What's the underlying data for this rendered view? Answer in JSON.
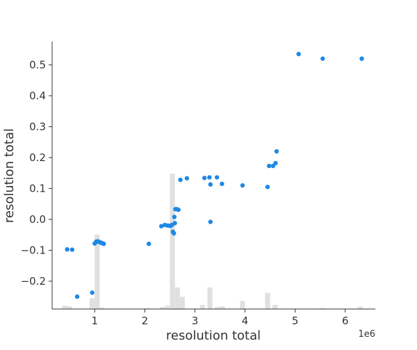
{
  "chart_data": {
    "type": "scatter",
    "xlabel": "resolution total",
    "ylabel": "resolution total",
    "x_offset_label": "1e6",
    "x_unit_scale": 1000000,
    "xlim": [
      150000,
      6600000
    ],
    "ylim": [
      -0.29,
      0.575
    ],
    "x_ticks": [
      1000000,
      2000000,
      3000000,
      4000000,
      5000000,
      6000000
    ],
    "x_tick_labels": [
      "1",
      "2",
      "3",
      "4",
      "5",
      "6"
    ],
    "y_ticks": [
      -0.2,
      -0.1,
      0.0,
      0.1,
      0.2,
      0.3,
      0.4,
      0.5
    ],
    "y_tick_labels": [
      "−0.2",
      "−0.1",
      "0.0",
      "0.1",
      "0.2",
      "0.3",
      "0.4",
      "0.5"
    ],
    "grid": false,
    "point_color": "#1E88E5",
    "histogram_color": "#E0E0E0",
    "points": [
      {
        "x": 450000,
        "y": -0.097
      },
      {
        "x": 550000,
        "y": -0.098
      },
      {
        "x": 650000,
        "y": -0.25
      },
      {
        "x": 950000,
        "y": -0.237
      },
      {
        "x": 1000000,
        "y": -0.078
      },
      {
        "x": 1030000,
        "y": -0.072
      },
      {
        "x": 1060000,
        "y": -0.071
      },
      {
        "x": 1090000,
        "y": -0.073
      },
      {
        "x": 1120000,
        "y": -0.075
      },
      {
        "x": 1150000,
        "y": -0.077
      },
      {
        "x": 1180000,
        "y": -0.079
      },
      {
        "x": 2080000,
        "y": -0.079
      },
      {
        "x": 2330000,
        "y": -0.022
      },
      {
        "x": 2400000,
        "y": -0.018
      },
      {
        "x": 2460000,
        "y": -0.02
      },
      {
        "x": 2510000,
        "y": -0.021
      },
      {
        "x": 2540000,
        "y": -0.018
      },
      {
        "x": 2560000,
        "y": -0.04
      },
      {
        "x": 2580000,
        "y": -0.045
      },
      {
        "x": 2590000,
        "y": 0.008
      },
      {
        "x": 2600000,
        "y": -0.012
      },
      {
        "x": 2610000,
        "y": 0.033
      },
      {
        "x": 2640000,
        "y": 0.033
      },
      {
        "x": 2670000,
        "y": 0.031
      },
      {
        "x": 2710000,
        "y": 0.128
      },
      {
        "x": 2840000,
        "y": 0.133
      },
      {
        "x": 3190000,
        "y": 0.134
      },
      {
        "x": 3290000,
        "y": 0.136
      },
      {
        "x": 3310000,
        "y": 0.113
      },
      {
        "x": 3310000,
        "y": -0.008
      },
      {
        "x": 3440000,
        "y": 0.136
      },
      {
        "x": 3540000,
        "y": 0.115
      },
      {
        "x": 3950000,
        "y": 0.11
      },
      {
        "x": 4450000,
        "y": 0.105
      },
      {
        "x": 4480000,
        "y": 0.173
      },
      {
        "x": 4560000,
        "y": 0.173
      },
      {
        "x": 4610000,
        "y": 0.182
      },
      {
        "x": 4630000,
        "y": 0.22
      },
      {
        "x": 5070000,
        "y": 0.535
      },
      {
        "x": 5550000,
        "y": 0.52
      },
      {
        "x": 6330000,
        "y": 0.52
      }
    ],
    "histogram": {
      "bin_width": 100000,
      "bins": [
        {
          "x": 400000,
          "frac": 0.025
        },
        {
          "x": 500000,
          "frac": 0.02
        },
        {
          "x": 950000,
          "frac": 0.08
        },
        {
          "x": 1050000,
          "frac": 0.55
        },
        {
          "x": 1150000,
          "frac": 0.01
        },
        {
          "x": 2050000,
          "frac": 0.008
        },
        {
          "x": 2350000,
          "frac": 0.015
        },
        {
          "x": 2450000,
          "frac": 0.025
        },
        {
          "x": 2550000,
          "frac": 1.0
        },
        {
          "x": 2650000,
          "frac": 0.16
        },
        {
          "x": 2750000,
          "frac": 0.09
        },
        {
          "x": 3150000,
          "frac": 0.03
        },
        {
          "x": 3300000,
          "frac": 0.16
        },
        {
          "x": 3450000,
          "frac": 0.015
        },
        {
          "x": 3550000,
          "frac": 0.02
        },
        {
          "x": 3950000,
          "frac": 0.06
        },
        {
          "x": 4450000,
          "frac": 0.12
        },
        {
          "x": 4600000,
          "frac": 0.03
        },
        {
          "x": 5550000,
          "frac": 0.008
        },
        {
          "x": 6300000,
          "frac": 0.018
        }
      ]
    }
  }
}
